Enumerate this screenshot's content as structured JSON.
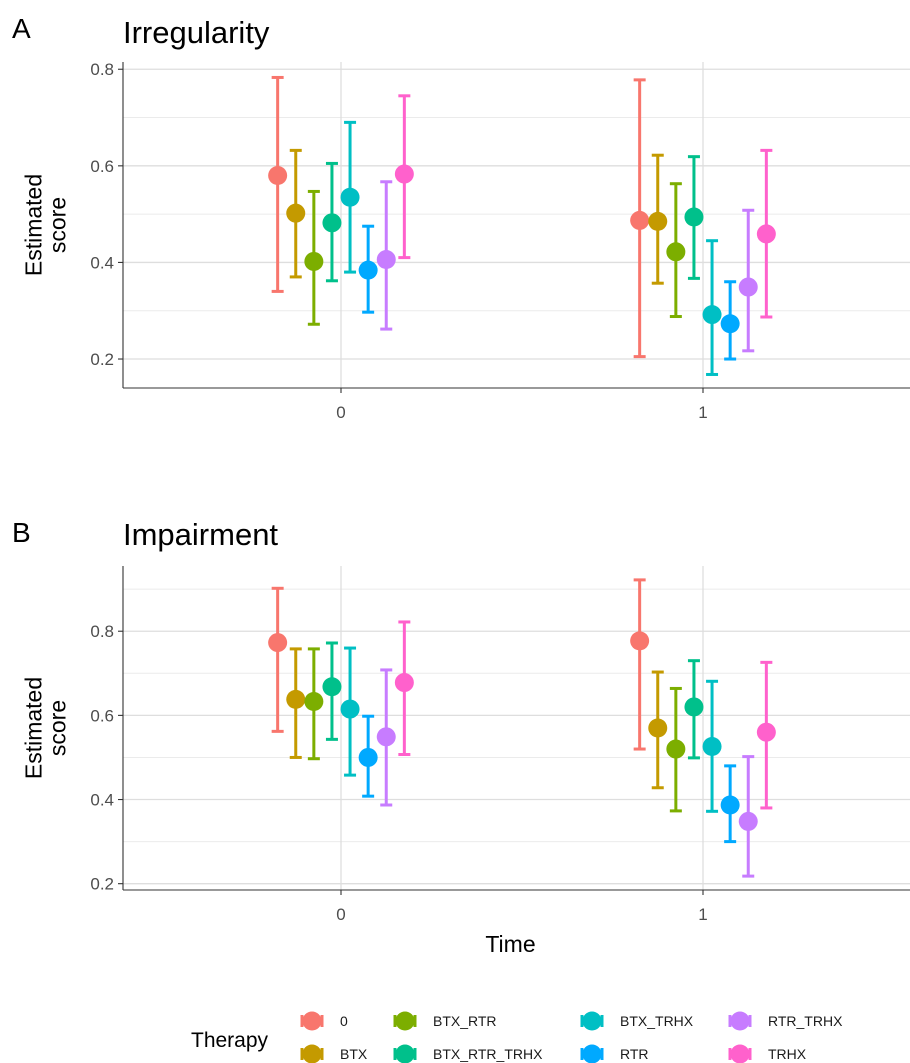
{
  "chart_data": [
    {
      "type": "errorbar",
      "panel_label": "A",
      "title": "Irregularity",
      "ylabel": "Estimated score",
      "ylim": [
        0.14,
        0.815
      ],
      "yticks": [
        0.2,
        0.4,
        0.6,
        0.8
      ],
      "categories": [
        "0",
        "1"
      ],
      "grid": true,
      "series": [
        {
          "name": "0",
          "color": "#F8766D",
          "points": [
            {
              "x": "0",
              "y": 0.58,
              "lo": 0.34,
              "hi": 0.783
            },
            {
              "x": "1",
              "y": 0.487,
              "lo": 0.205,
              "hi": 0.778
            }
          ]
        },
        {
          "name": "BTX",
          "color": "#C49A00",
          "points": [
            {
              "x": "0",
              "y": 0.502,
              "lo": 0.37,
              "hi": 0.632
            },
            {
              "x": "1",
              "y": 0.485,
              "lo": 0.357,
              "hi": 0.622
            }
          ]
        },
        {
          "name": "BTX_RTR",
          "color": "#7CAE00",
          "points": [
            {
              "x": "0",
              "y": 0.402,
              "lo": 0.272,
              "hi": 0.547
            },
            {
              "x": "1",
              "y": 0.422,
              "lo": 0.288,
              "hi": 0.563
            }
          ]
        },
        {
          "name": "BTX_RTR_TRHX",
          "color": "#00C08B",
          "points": [
            {
              "x": "0",
              "y": 0.482,
              "lo": 0.362,
              "hi": 0.605
            },
            {
              "x": "1",
              "y": 0.494,
              "lo": 0.367,
              "hi": 0.619
            }
          ]
        },
        {
          "name": "BTX_TRHX",
          "color": "#00BFC4",
          "points": [
            {
              "x": "0",
              "y": 0.535,
              "lo": 0.38,
              "hi": 0.69
            },
            {
              "x": "1",
              "y": 0.292,
              "lo": 0.168,
              "hi": 0.445
            }
          ]
        },
        {
          "name": "RTR",
          "color": "#00A9FF",
          "points": [
            {
              "x": "0",
              "y": 0.384,
              "lo": 0.297,
              "hi": 0.475
            },
            {
              "x": "1",
              "y": 0.273,
              "lo": 0.2,
              "hi": 0.36
            }
          ]
        },
        {
          "name": "RTR_TRHX",
          "color": "#C77CFF",
          "points": [
            {
              "x": "0",
              "y": 0.406,
              "lo": 0.262,
              "hi": 0.567
            },
            {
              "x": "1",
              "y": 0.349,
              "lo": 0.217,
              "hi": 0.508
            }
          ]
        },
        {
          "name": "TRHX",
          "color": "#FF61CC",
          "points": [
            {
              "x": "0",
              "y": 0.583,
              "lo": 0.41,
              "hi": 0.745
            },
            {
              "x": "1",
              "y": 0.459,
              "lo": 0.287,
              "hi": 0.632
            }
          ]
        }
      ]
    },
    {
      "type": "errorbar",
      "panel_label": "B",
      "title": "Impairment",
      "ylabel": "Estimated score",
      "xlabel": "Time",
      "ylim": [
        0.185,
        0.955
      ],
      "yticks": [
        0.2,
        0.4,
        0.6,
        0.8
      ],
      "categories": [
        "0",
        "1"
      ],
      "grid": true,
      "series": [
        {
          "name": "0",
          "color": "#F8766D",
          "points": [
            {
              "x": "0",
              "y": 0.773,
              "lo": 0.562,
              "hi": 0.902
            },
            {
              "x": "1",
              "y": 0.777,
              "lo": 0.52,
              "hi": 0.922
            }
          ]
        },
        {
          "name": "BTX",
          "color": "#C49A00",
          "points": [
            {
              "x": "0",
              "y": 0.638,
              "lo": 0.5,
              "hi": 0.758
            },
            {
              "x": "1",
              "y": 0.57,
              "lo": 0.428,
              "hi": 0.703
            }
          ]
        },
        {
          "name": "BTX_RTR",
          "color": "#7CAE00",
          "points": [
            {
              "x": "0",
              "y": 0.633,
              "lo": 0.497,
              "hi": 0.758
            },
            {
              "x": "1",
              "y": 0.52,
              "lo": 0.373,
              "hi": 0.664
            }
          ]
        },
        {
          "name": "BTX_RTR_TRHX",
          "color": "#00C08B",
          "points": [
            {
              "x": "0",
              "y": 0.668,
              "lo": 0.543,
              "hi": 0.772
            },
            {
              "x": "1",
              "y": 0.62,
              "lo": 0.499,
              "hi": 0.73
            }
          ]
        },
        {
          "name": "BTX_TRHX",
          "color": "#00BFC4",
          "points": [
            {
              "x": "0",
              "y": 0.615,
              "lo": 0.458,
              "hi": 0.76
            },
            {
              "x": "1",
              "y": 0.526,
              "lo": 0.372,
              "hi": 0.681
            }
          ]
        },
        {
          "name": "RTR",
          "color": "#00A9FF",
          "points": [
            {
              "x": "0",
              "y": 0.5,
              "lo": 0.408,
              "hi": 0.598
            },
            {
              "x": "1",
              "y": 0.387,
              "lo": 0.3,
              "hi": 0.48
            }
          ]
        },
        {
          "name": "RTR_TRHX",
          "color": "#C77CFF",
          "points": [
            {
              "x": "0",
              "y": 0.549,
              "lo": 0.387,
              "hi": 0.708
            },
            {
              "x": "1",
              "y": 0.348,
              "lo": 0.218,
              "hi": 0.502
            }
          ]
        },
        {
          "name": "TRHX",
          "color": "#FF61CC",
          "points": [
            {
              "x": "0",
              "y": 0.678,
              "lo": 0.507,
              "hi": 0.822
            },
            {
              "x": "1",
              "y": 0.56,
              "lo": 0.38,
              "hi": 0.726
            }
          ]
        }
      ]
    }
  ],
  "legend": {
    "title": "Therapy",
    "position": "bottom",
    "items": [
      "0",
      "BTX",
      "BTX_RTR",
      "BTX_RTR_TRHX",
      "BTX_TRHX",
      "RTR",
      "RTR_TRHX",
      "TRHX"
    ]
  }
}
